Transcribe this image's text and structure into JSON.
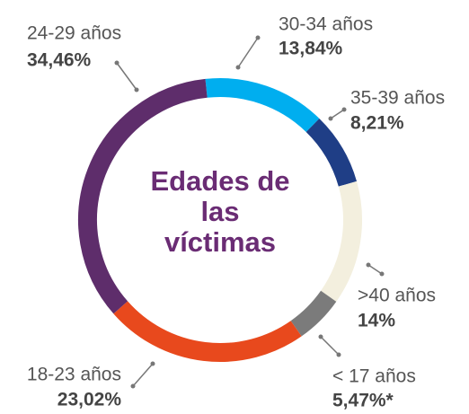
{
  "chart_data": {
    "type": "donut",
    "title": "Edades de las víctimas",
    "categories": [
      "30-34 años",
      "35-39 años",
      ">40 años",
      "< 17 años",
      "18-23 años",
      "24-29 años"
    ],
    "values": [
      13.84,
      8.21,
      14,
      5.47,
      23.02,
      34.46
    ],
    "value_labels": [
      "13,84%",
      "8,21%",
      "14%",
      "5,47%*",
      "23,02%",
      "34,46%"
    ],
    "colors": [
      "#00aeef",
      "#1f3e86",
      "#f3efde",
      "#7b7b7b",
      "#e8491d",
      "#5e2d6b"
    ]
  }
}
